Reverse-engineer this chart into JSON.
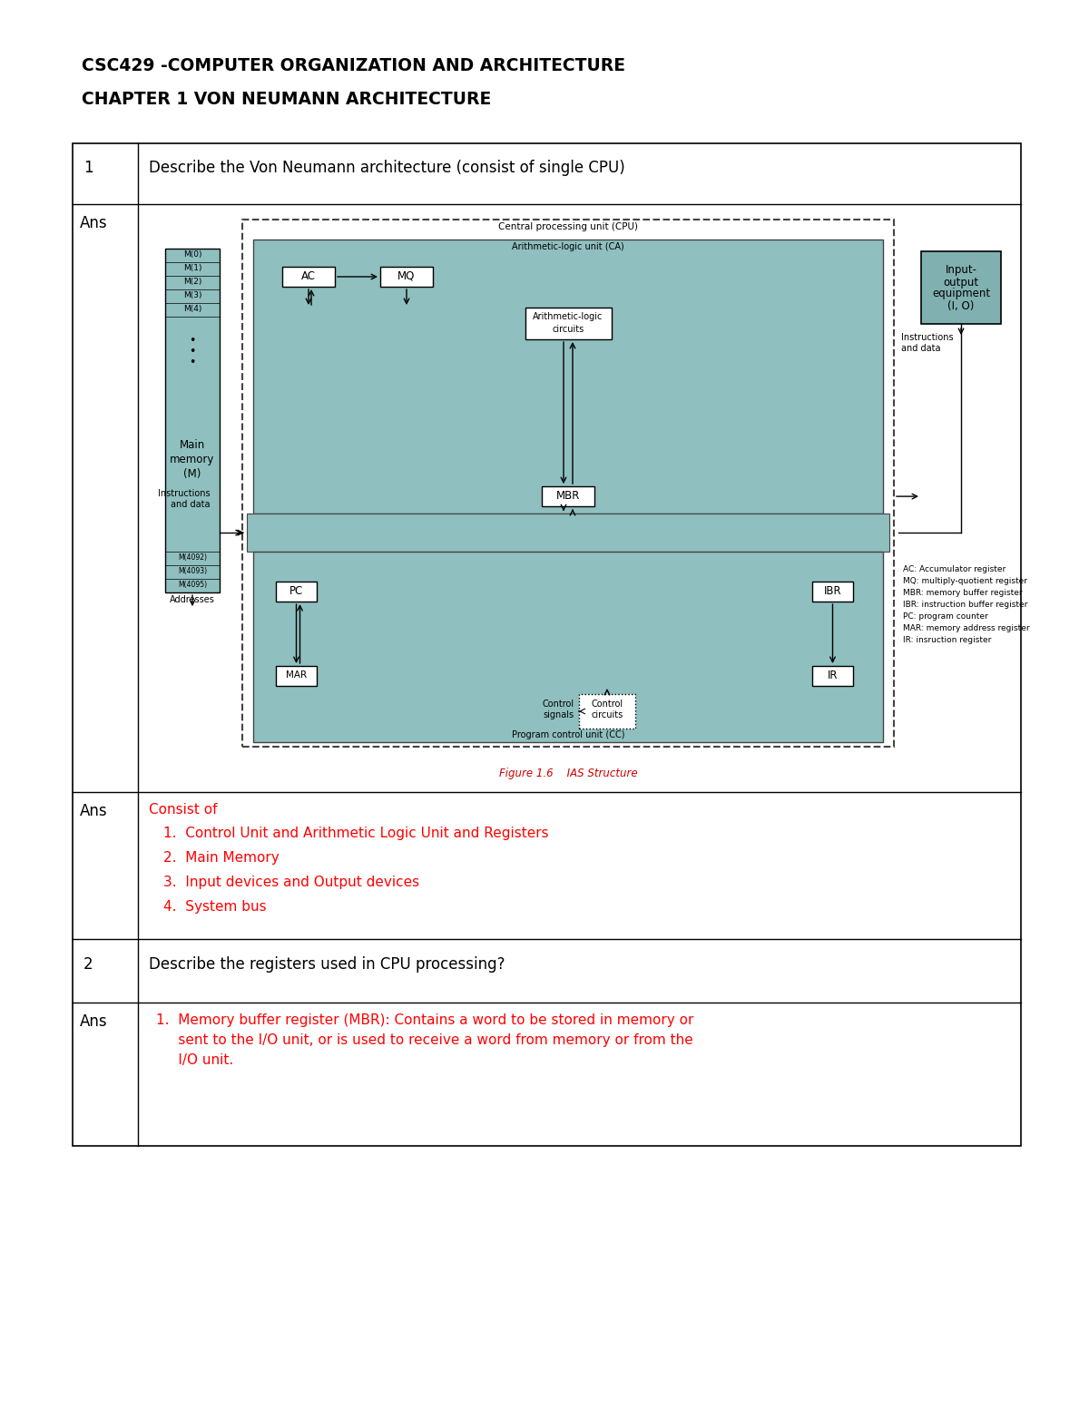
{
  "title1": "CSC429 -COMPUTER ORGANIZATION AND ARCHITECTURE",
  "title2": "CHAPTER 1 VON NEUMANN ARCHITECTURE",
  "bg_color": "#ffffff",
  "red_color": "#ff0000",
  "black_color": "#000000",
  "teal_color": "#8fbfbf",
  "io_teal": "#80b0b0",
  "q1_num": "1",
  "q1_text": "Describe the Von Neumann architecture (consist of single CPU)",
  "q2_num": "2",
  "q2_text": "Describe the registers used in CPU processing?",
  "consist_title": "Consist of",
  "consist_items": [
    "Control Unit and Arithmetic Logic Unit and Registers",
    "Main Memory",
    "Input devices and Output devices",
    "System bus"
  ],
  "ans3_line1": "1.  Memory buffer register (MBR): Contains a word to be stored in memory or",
  "ans3_line2": "     sent to the I/O unit, or is used to receive a word from memory or from the",
  "ans3_line3": "     I/O unit.",
  "legend_items": [
    "AC: Accumulator register",
    "MQ: multiply-quotient register",
    "MBR: memory buffer register",
    "IBR: instruction buffer register",
    "PC: program counter",
    "MAR: memory address register",
    "IR: insruction register"
  ]
}
